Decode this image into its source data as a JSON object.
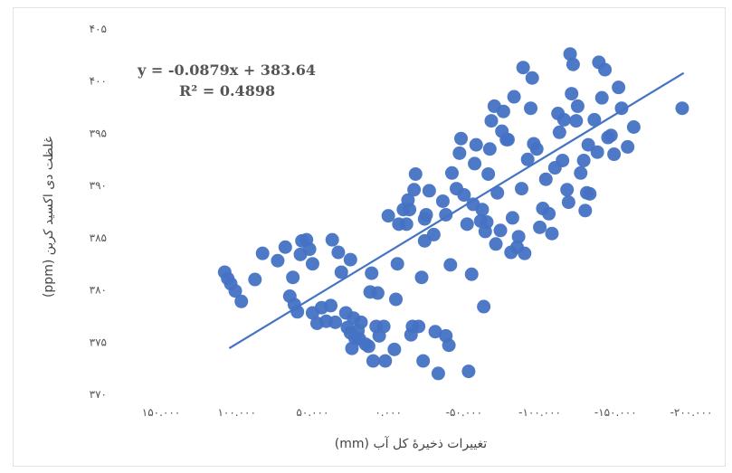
{
  "chart_data": {
    "type": "scatter",
    "title": "",
    "xlabel": "تغییرات ذخیرهٔ کل آب (mm)",
    "ylabel": "غلظت دی اکسید کربن (ppm)",
    "x_reversed": true,
    "xlim": [
      150,
      -200
    ],
    "ylim": [
      370,
      405
    ],
    "x_tick_labels": [
      "۱۵۰.۰۰۰",
      "۱۰۰.۰۰۰",
      "۵۰.۰۰۰",
      "۰.۰۰۰",
      "-۵۰.۰۰۰",
      "-۱۰۰.۰۰۰",
      "-۱۵۰.۰۰۰",
      "-۲۰۰.۰۰۰"
    ],
    "x_tick_values": [
      150,
      100,
      50,
      0,
      -50,
      -100,
      -150,
      -200
    ],
    "y_tick_labels": [
      "۳۷۰",
      "۳۷۵",
      "۳۸۰",
      "۳۸۵",
      "۳۹۰",
      "۳۹۵",
      "۴۰۰",
      "۴۰۵"
    ],
    "y_tick_values": [
      370,
      375,
      380,
      385,
      390,
      395,
      400,
      405
    ],
    "grid": false,
    "point_color": "#4472c4",
    "trendline": {
      "color": "#4472c4",
      "slope": -0.0879,
      "intercept": 383.64,
      "x_range": [
        105,
        -195
      ],
      "equation_label": "y = -0.0879x + 383.64",
      "r2_label": "R² = 0.4898"
    },
    "points": [
      [
        108,
        381.7
      ],
      [
        106,
        381.1
      ],
      [
        104,
        380.6
      ],
      [
        101,
        379.9
      ],
      [
        97,
        378.9
      ],
      [
        88,
        381.0
      ],
      [
        83,
        383.5
      ],
      [
        73,
        382.8
      ],
      [
        68,
        384.1
      ],
      [
        63,
        381.2
      ],
      [
        65,
        379.4
      ],
      [
        62,
        378.6
      ],
      [
        60,
        377.9
      ],
      [
        58,
        383.4
      ],
      [
        57,
        384.7
      ],
      [
        54,
        384.8
      ],
      [
        52,
        383.9
      ],
      [
        50,
        382.5
      ],
      [
        50,
        377.8
      ],
      [
        47,
        376.8
      ],
      [
        44,
        378.3
      ],
      [
        41,
        377.0
      ],
      [
        38,
        378.5
      ],
      [
        35,
        376.9
      ],
      [
        37,
        384.8
      ],
      [
        33,
        383.6
      ],
      [
        31,
        381.7
      ],
      [
        28,
        377.8
      ],
      [
        27,
        376.4
      ],
      [
        25,
        375.9
      ],
      [
        24,
        374.4
      ],
      [
        22,
        375.4
      ],
      [
        23,
        377.3
      ],
      [
        25,
        382.9
      ],
      [
        20,
        376.1
      ],
      [
        19,
        375.3
      ],
      [
        18,
        376.9
      ],
      [
        15,
        374.8
      ],
      [
        13,
        374.6
      ],
      [
        10,
        373.2
      ],
      [
        12,
        379.8
      ],
      [
        11,
        381.6
      ],
      [
        8,
        376.5
      ],
      [
        6,
        375.6
      ],
      [
        7,
        379.7
      ],
      [
        3,
        376.5
      ],
      [
        2,
        373.2
      ],
      [
        0,
        387.1
      ],
      [
        -4,
        374.3
      ],
      [
        -6,
        382.5
      ],
      [
        -5,
        379.1
      ],
      [
        -7,
        386.3
      ],
      [
        -10,
        387.7
      ],
      [
        -12,
        386.3
      ],
      [
        -13,
        388.6
      ],
      [
        -14,
        387.7
      ],
      [
        -15,
        375.7
      ],
      [
        -16,
        376.5
      ],
      [
        -18,
        391.1
      ],
      [
        -17,
        389.6
      ],
      [
        -20,
        376.5
      ],
      [
        -23,
        373.2
      ],
      [
        -22,
        381.2
      ],
      [
        -24,
        384.7
      ],
      [
        -24,
        386.8
      ],
      [
        -25,
        387.2
      ],
      [
        -27,
        389.5
      ],
      [
        -30,
        385.3
      ],
      [
        -31,
        376.0
      ],
      [
        -33,
        372.0
      ],
      [
        -36,
        388.5
      ],
      [
        -38,
        387.2
      ],
      [
        -38,
        375.6
      ],
      [
        -40,
        374.7
      ],
      [
        -41,
        382.4
      ],
      [
        -42,
        391.2
      ],
      [
        -45,
        389.7
      ],
      [
        -47,
        393.1
      ],
      [
        -48,
        394.5
      ],
      [
        -50,
        389.1
      ],
      [
        -52,
        386.3
      ],
      [
        -53,
        372.2
      ],
      [
        -55,
        381.5
      ],
      [
        -56,
        388.2
      ],
      [
        -57,
        392.1
      ],
      [
        -58,
        393.9
      ],
      [
        -61,
        386.6
      ],
      [
        -62,
        387.7
      ],
      [
        -63,
        378.4
      ],
      [
        -64,
        385.6
      ],
      [
        -65,
        386.5
      ],
      [
        -66,
        391.1
      ],
      [
        -67,
        393.5
      ],
      [
        -68,
        396.2
      ],
      [
        -70,
        397.6
      ],
      [
        -71,
        384.4
      ],
      [
        -72,
        389.3
      ],
      [
        -74,
        385.7
      ],
      [
        -75,
        395.2
      ],
      [
        -76,
        397.1
      ],
      [
        -78,
        394.4
      ],
      [
        -79,
        394.4
      ],
      [
        -81,
        383.6
      ],
      [
        -82,
        386.9
      ],
      [
        -83,
        398.5
      ],
      [
        -85,
        384.1
      ],
      [
        -86,
        385.1
      ],
      [
        -88,
        389.7
      ],
      [
        -89,
        401.3
      ],
      [
        -90,
        383.5
      ],
      [
        -92,
        392.5
      ],
      [
        -94,
        397.4
      ],
      [
        -95,
        400.3
      ],
      [
        -96,
        394.0
      ],
      [
        -98,
        393.5
      ],
      [
        -100,
        386.0
      ],
      [
        -102,
        387.8
      ],
      [
        -104,
        390.6
      ],
      [
        -106,
        387.3
      ],
      [
        -108,
        385.4
      ],
      [
        -110,
        391.7
      ],
      [
        -112,
        396.9
      ],
      [
        -113,
        395.1
      ],
      [
        -115,
        392.4
      ],
      [
        -116,
        396.3
      ],
      [
        -118,
        389.6
      ],
      [
        -119,
        388.4
      ],
      [
        -120,
        402.6
      ],
      [
        -121,
        398.8
      ],
      [
        -122,
        401.6
      ],
      [
        -124,
        396.2
      ],
      [
        -125,
        397.6
      ],
      [
        -127,
        391.2
      ],
      [
        -129,
        392.4
      ],
      [
        -130,
        387.6
      ],
      [
        -131,
        389.3
      ],
      [
        -132,
        393.9
      ],
      [
        -133,
        389.2
      ],
      [
        -136,
        396.3
      ],
      [
        -138,
        393.2
      ],
      [
        -139,
        401.8
      ],
      [
        -141,
        398.4
      ],
      [
        -143,
        401.1
      ],
      [
        -145,
        394.6
      ],
      [
        -147,
        394.8
      ],
      [
        -149,
        393.0
      ],
      [
        -152,
        399.4
      ],
      [
        -154,
        397.4
      ],
      [
        -158,
        393.7
      ],
      [
        -162,
        395.6
      ],
      [
        -194,
        397.4
      ]
    ]
  }
}
